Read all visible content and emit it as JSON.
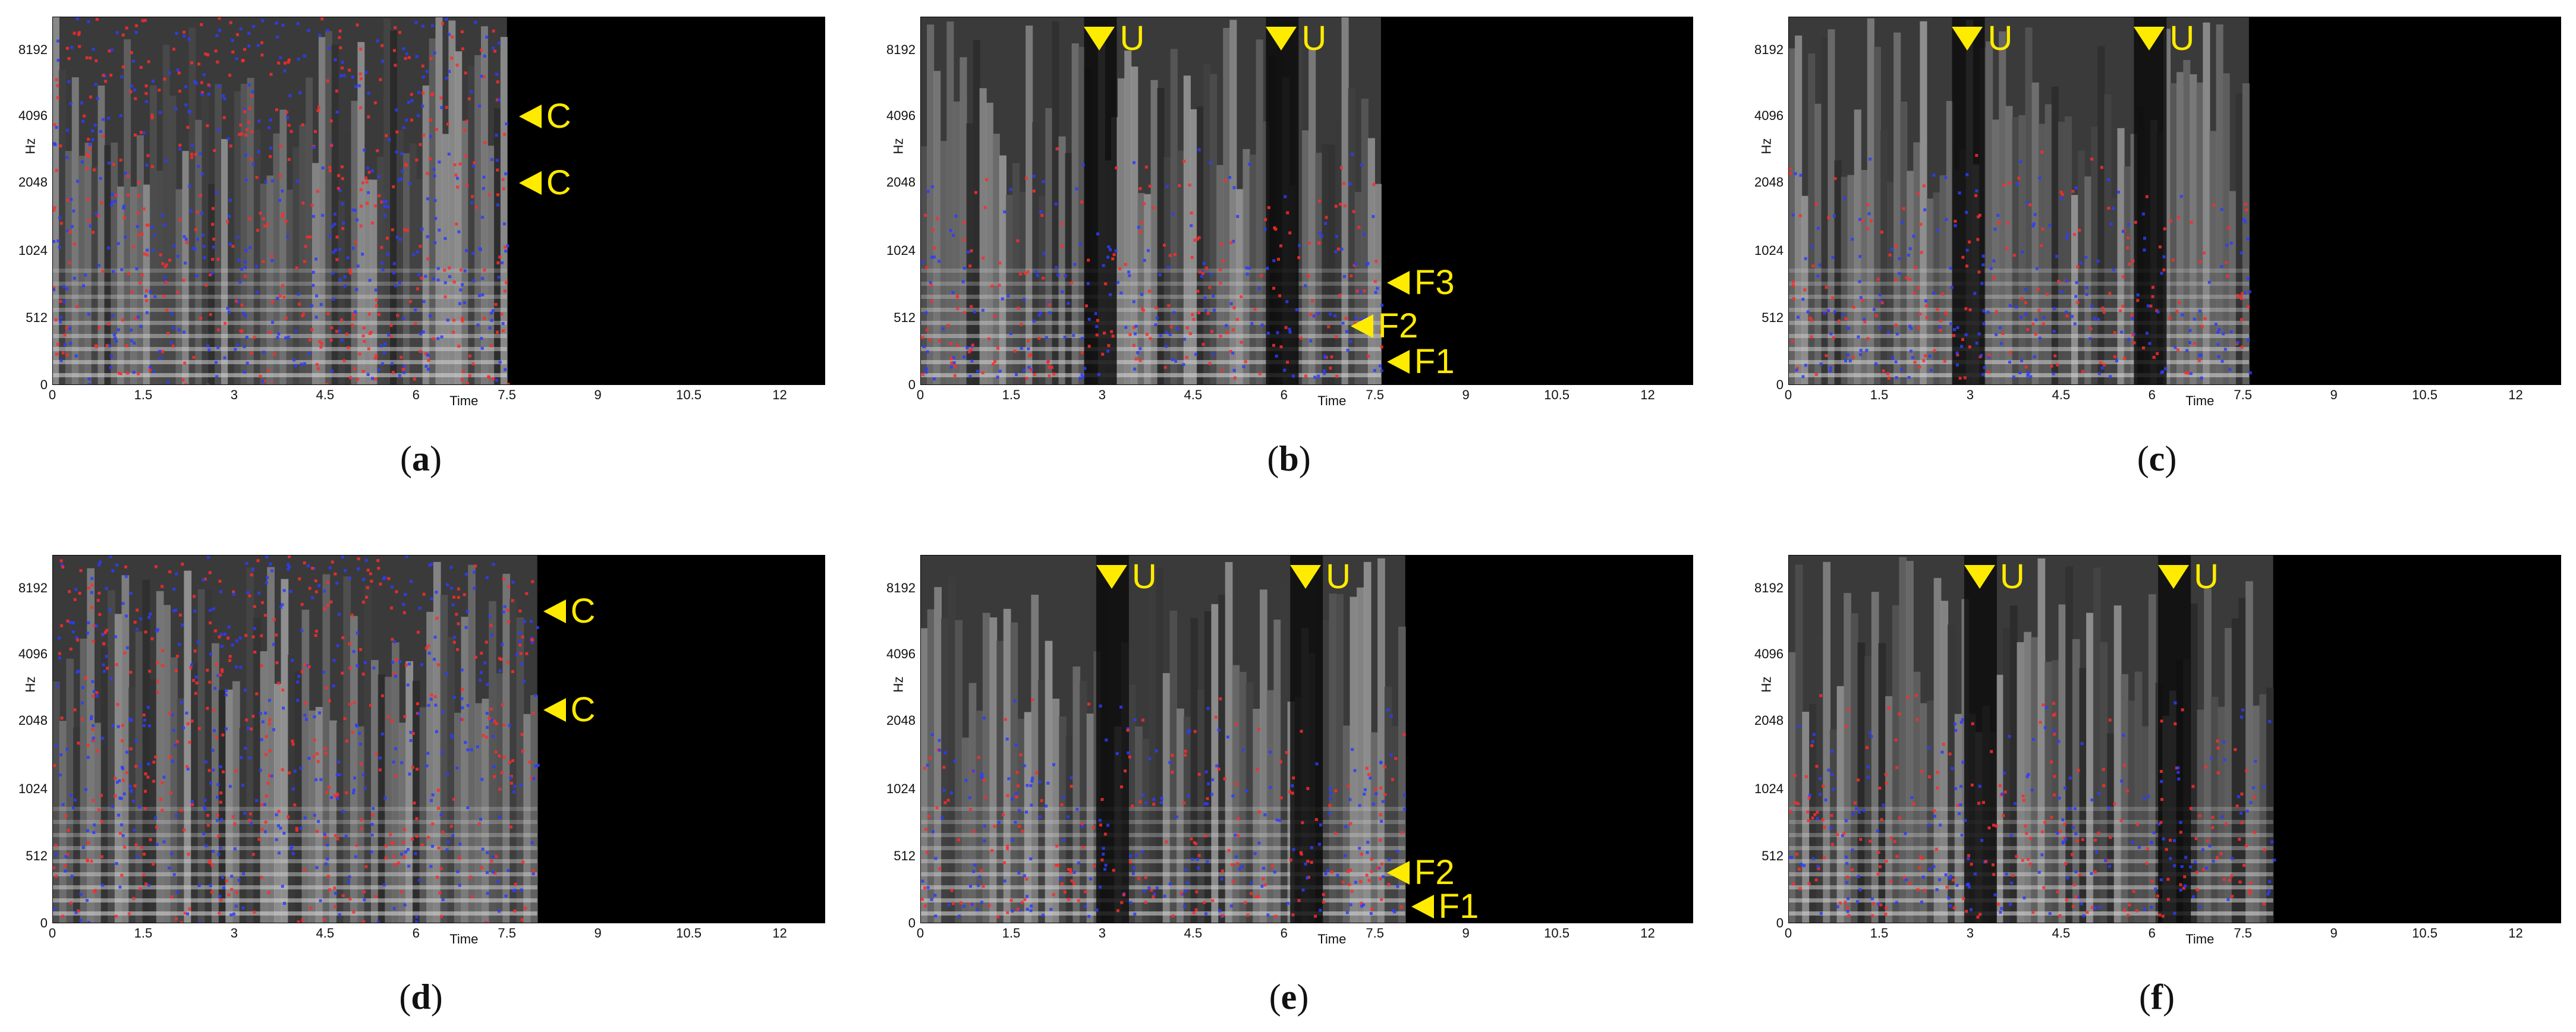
{
  "figure": {
    "yticks": [
      "8192",
      "4096",
      "2048",
      "1024",
      "512",
      "0"
    ],
    "xticks": [
      "0",
      "1.5",
      "3",
      "4.5",
      "6",
      "7.5",
      "9",
      "10.5",
      "12"
    ],
    "ylabel": "Hz",
    "xlabel": "Time",
    "panels": [
      {
        "id": "a",
        "caption_letter": "a",
        "signal_end_s": 7.5,
        "noisy": true,
        "annotations": [
          {
            "type": "left",
            "text": "C",
            "freq": 4096,
            "t": 7.6
          },
          {
            "type": "left",
            "text": "C",
            "freq": 2048,
            "t": 7.6
          }
        ]
      },
      {
        "id": "b",
        "caption_letter": "b",
        "signal_end_s": 7.6,
        "noisy": false,
        "annotations": [
          {
            "type": "down",
            "text": "U",
            "t": 2.8
          },
          {
            "type": "down",
            "text": "U",
            "t": 5.8
          },
          {
            "type": "left",
            "text": "F3",
            "freq": 780,
            "t": 7.6
          },
          {
            "type": "left",
            "text": "F2",
            "freq": 450,
            "t": 7.0
          },
          {
            "type": "left",
            "text": "F1",
            "freq": 180,
            "t": 7.6
          }
        ]
      },
      {
        "id": "c",
        "caption_letter": "c",
        "signal_end_s": 7.6,
        "noisy": false,
        "annotations": [
          {
            "type": "down",
            "text": "U",
            "t": 2.8
          },
          {
            "type": "down",
            "text": "U",
            "t": 5.8
          }
        ]
      },
      {
        "id": "d",
        "caption_letter": "d",
        "signal_end_s": 8.0,
        "noisy": true,
        "annotations": [
          {
            "type": "left",
            "text": "C",
            "freq": 6800,
            "t": 8.0
          },
          {
            "type": "left",
            "text": "C",
            "freq": 2400,
            "t": 8.0
          }
        ]
      },
      {
        "id": "e",
        "caption_letter": "e",
        "signal_end_s": 8.0,
        "noisy": false,
        "annotations": [
          {
            "type": "down",
            "text": "U",
            "t": 3.0
          },
          {
            "type": "down",
            "text": "U",
            "t": 6.2
          },
          {
            "type": "left",
            "text": "F2",
            "freq": 390,
            "t": 7.6
          },
          {
            "type": "left",
            "text": "F1",
            "freq": 130,
            "t": 8.0
          }
        ]
      },
      {
        "id": "f",
        "caption_letter": "f",
        "signal_end_s": 8.0,
        "noisy": false,
        "annotations": [
          {
            "type": "down",
            "text": "U",
            "t": 3.0
          },
          {
            "type": "down",
            "text": "U",
            "t": 6.2
          }
        ]
      }
    ]
  },
  "colors": {
    "annotation": "#ffeb00",
    "pitch_red": "#ff2a2a",
    "pitch_blue": "#2d3cff"
  }
}
